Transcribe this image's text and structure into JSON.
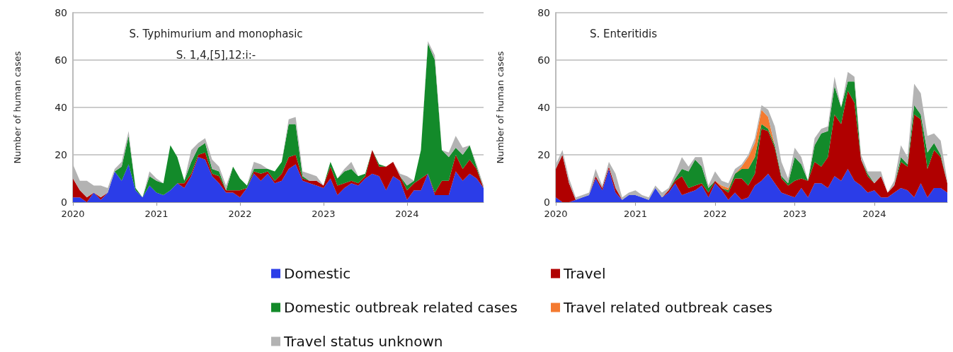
{
  "chart_data": [
    {
      "type": "area",
      "title": "S. Typhimurium and monophasic\nS. 1,4,[5],12:i:-",
      "ylabel": "Number of human cases",
      "stacked": true,
      "grid": "y",
      "legend": false,
      "ylim": [
        0,
        80
      ],
      "yticks": [
        0,
        20,
        40,
        60,
        80
      ],
      "categories": [
        "2020",
        null,
        null,
        null,
        null,
        null,
        null,
        null,
        null,
        null,
        null,
        null,
        "2021",
        null,
        null,
        null,
        null,
        null,
        null,
        null,
        null,
        null,
        null,
        null,
        "2022",
        null,
        null,
        null,
        null,
        null,
        null,
        null,
        null,
        null,
        null,
        null,
        "2023",
        null,
        null,
        null,
        null,
        null,
        null,
        null,
        null,
        null,
        null,
        null,
        "2024",
        null,
        null,
        null,
        null,
        null,
        null,
        null,
        null,
        null,
        null,
        null
      ],
      "series": [
        {
          "color": "#2b3de8",
          "values": [
            2,
            2,
            0,
            4,
            1,
            4,
            13,
            9,
            16,
            5,
            2,
            7,
            4,
            3,
            5,
            8,
            6,
            11,
            19,
            18,
            11,
            8,
            4,
            4,
            2,
            6,
            12,
            9,
            12,
            8,
            9,
            14,
            16,
            9,
            8,
            7,
            6,
            10,
            3,
            6,
            8,
            7,
            10,
            12,
            11,
            5,
            11,
            9,
            1,
            5,
            5,
            12,
            3,
            3,
            3,
            13,
            9,
            12,
            10,
            6
          ]
        },
        {
          "color": "#b00000",
          "values": [
            8,
            3,
            2,
            0,
            1,
            0,
            0,
            0,
            0,
            0,
            0,
            0,
            0,
            0,
            0,
            0,
            2,
            1,
            1,
            3,
            1,
            3,
            1,
            1,
            3,
            0,
            1,
            3,
            1,
            1,
            3,
            5,
            4,
            1,
            1,
            2,
            1,
            5,
            4,
            2,
            1,
            1,
            1,
            10,
            4,
            10,
            6,
            2,
            4,
            3,
            5,
            0,
            1,
            6,
            6,
            7,
            5,
            6,
            4,
            0
          ]
        },
        {
          "color": "#138a2a",
          "values": [
            0,
            0,
            0,
            0,
            0,
            0,
            0,
            6,
            12,
            1,
            0,
            4,
            5,
            5,
            19,
            11,
            1,
            5,
            3,
            4,
            2,
            2,
            0,
            10,
            5,
            1,
            1,
            2,
            1,
            4,
            5,
            14,
            13,
            1,
            0,
            0,
            0,
            2,
            3,
            5,
            5,
            3,
            1,
            0,
            1,
            0,
            0,
            0,
            2,
            1,
            12,
            55,
            56,
            13,
            10,
            3,
            6,
            6,
            1,
            0
          ]
        },
        {
          "color": "#b3b3b3",
          "values": [
            6,
            4,
            7,
            3,
            5,
            2,
            1,
            2,
            2,
            0,
            0,
            2,
            1,
            0,
            0,
            0,
            0,
            5,
            2,
            2,
            4,
            2,
            2,
            0,
            0,
            0,
            3,
            2,
            0,
            0,
            0,
            2,
            3,
            2,
            3,
            2,
            0,
            0,
            0,
            1,
            3,
            0,
            0,
            0,
            0,
            0,
            0,
            1,
            4,
            0,
            0,
            1,
            2,
            0,
            2,
            5,
            3,
            0,
            1,
            1
          ]
        }
      ]
    },
    {
      "type": "area",
      "title": "S. Enteritidis",
      "ylabel": "Number of human cases",
      "stacked": true,
      "grid": "y",
      "legend": "bottom",
      "ylim": [
        0,
        80
      ],
      "yticks": [
        0,
        20,
        40,
        60,
        80
      ],
      "categories": [
        "2020",
        null,
        null,
        null,
        null,
        null,
        null,
        null,
        null,
        null,
        null,
        null,
        "2021",
        null,
        null,
        null,
        null,
        null,
        null,
        null,
        null,
        null,
        null,
        null,
        "2022",
        null,
        null,
        null,
        null,
        null,
        null,
        null,
        null,
        null,
        null,
        null,
        "2023",
        null,
        null,
        null,
        null,
        null,
        null,
        null,
        null,
        null,
        null,
        null,
        "2024",
        null,
        null,
        null,
        null,
        null,
        null,
        null,
        null,
        null,
        null,
        null
      ],
      "series": [
        {
          "name": "Domestic",
          "color": "#2b3de8",
          "values": [
            2,
            0,
            0,
            1,
            2,
            3,
            10,
            5,
            14,
            4,
            1,
            3,
            3,
            2,
            1,
            6,
            2,
            4,
            8,
            3,
            4,
            5,
            7,
            2,
            8,
            5,
            1,
            4,
            1,
            2,
            7,
            9,
            12,
            8,
            4,
            3,
            2,
            6,
            2,
            8,
            8,
            6,
            11,
            9,
            14,
            9,
            7,
            4,
            5,
            2,
            2,
            4,
            6,
            5,
            2,
            8,
            2,
            6,
            6,
            4
          ]
        },
        {
          "name": "Travel",
          "color": "#b00000",
          "values": [
            12,
            20,
            8,
            0,
            0,
            0,
            1,
            1,
            1,
            2,
            0,
            0,
            0,
            0,
            0,
            0,
            0,
            1,
            1,
            8,
            2,
            2,
            1,
            2,
            1,
            1,
            3,
            6,
            9,
            5,
            5,
            22,
            18,
            15,
            6,
            4,
            7,
            4,
            7,
            9,
            7,
            13,
            26,
            24,
            33,
            33,
            11,
            7,
            3,
            9,
            2,
            3,
            11,
            10,
            35,
            27,
            12,
            16,
            13,
            4
          ]
        },
        {
          "name": "Domestic outbreak related cases",
          "color": "#138a2a",
          "values": [
            0,
            0,
            0,
            0,
            0,
            0,
            0,
            0,
            0,
            0,
            0,
            0,
            0,
            0,
            0,
            0,
            0,
            0,
            1,
            3,
            7,
            11,
            7,
            2,
            0,
            0,
            1,
            2,
            4,
            7,
            7,
            2,
            1,
            1,
            1,
            1,
            10,
            6,
            0,
            7,
            14,
            11,
            12,
            7,
            4,
            9,
            0,
            1,
            0,
            0,
            0,
            0,
            2,
            1,
            4,
            2,
            7,
            3,
            1,
            0
          ]
        },
        {
          "name": "Travel related outbreak cases",
          "color": "#f47a30",
          "values": [
            null,
            null,
            null,
            null,
            null,
            null,
            null,
            null,
            null,
            null,
            null,
            null,
            null,
            null,
            null,
            null,
            null,
            null,
            null,
            null,
            null,
            null,
            null,
            null,
            0,
            1,
            1,
            0,
            1,
            5,
            6,
            6,
            5,
            0,
            null,
            null,
            null,
            null,
            null,
            null,
            null,
            null,
            null,
            null,
            null,
            null,
            null,
            null,
            null,
            null,
            null,
            null,
            null,
            null,
            null,
            null,
            null,
            null,
            null,
            null
          ]
        },
        {
          "name": "Travel status unknown",
          "color": "#b3b3b3",
          "values": [
            2,
            2,
            2,
            1,
            1,
            1,
            3,
            1,
            2,
            6,
            1,
            1,
            2,
            1,
            1,
            1,
            2,
            1,
            2,
            5,
            2,
            1,
            4,
            1,
            4,
            2,
            2,
            2,
            1,
            1,
            2,
            2,
            3,
            8,
            6,
            2,
            4,
            3,
            0,
            3,
            2,
            2,
            4,
            0,
            4,
            2,
            2,
            1,
            5,
            2,
            0,
            2,
            5,
            3,
            9,
            9,
            7,
            4,
            6,
            1
          ]
        }
      ]
    }
  ]
}
